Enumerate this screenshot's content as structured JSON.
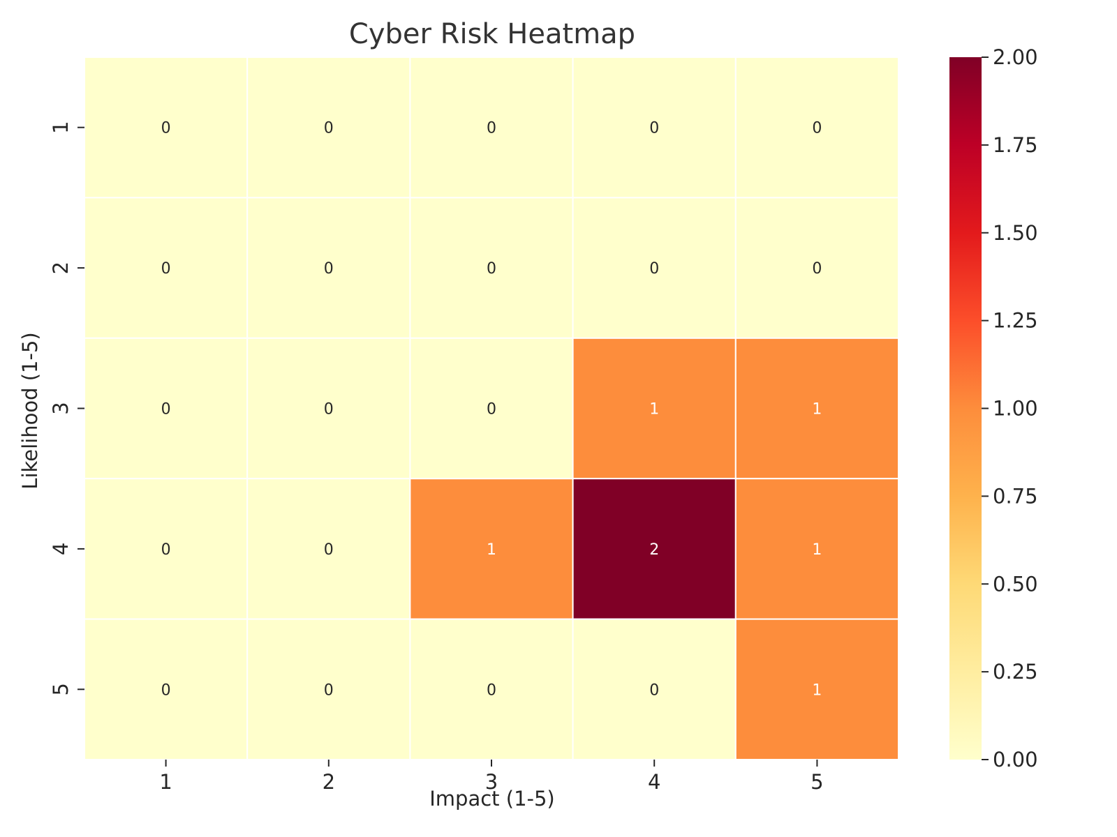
{
  "chart_data": {
    "type": "heatmap",
    "title": "Cyber Risk Heatmap",
    "xlabel": "Impact (1-5)",
    "ylabel": "Likelihood (1-5)",
    "x_categories": [
      "1",
      "2",
      "3",
      "4",
      "5"
    ],
    "y_categories": [
      "1",
      "2",
      "3",
      "4",
      "5"
    ],
    "values": [
      [
        0,
        0,
        0,
        0,
        0
      ],
      [
        0,
        0,
        0,
        0,
        0
      ],
      [
        0,
        0,
        0,
        1,
        1
      ],
      [
        0,
        0,
        1,
        2,
        1
      ],
      [
        0,
        0,
        0,
        0,
        1
      ]
    ],
    "colorbar": {
      "min": 0,
      "max": 2,
      "ticks": [
        "0.00",
        "0.25",
        "0.50",
        "0.75",
        "1.00",
        "1.25",
        "1.50",
        "1.75",
        "2.00"
      ],
      "colormap": "YlOrRd",
      "colors": [
        "#ffffcc",
        "#ffeda0",
        "#fed976",
        "#feb24c",
        "#fd8d3c",
        "#fc4e2a",
        "#e31a1c",
        "#bd0026",
        "#800026"
      ]
    },
    "annotation_dark_color": "#262626",
    "annotation_light_color": "#ffffff",
    "grid": false
  }
}
